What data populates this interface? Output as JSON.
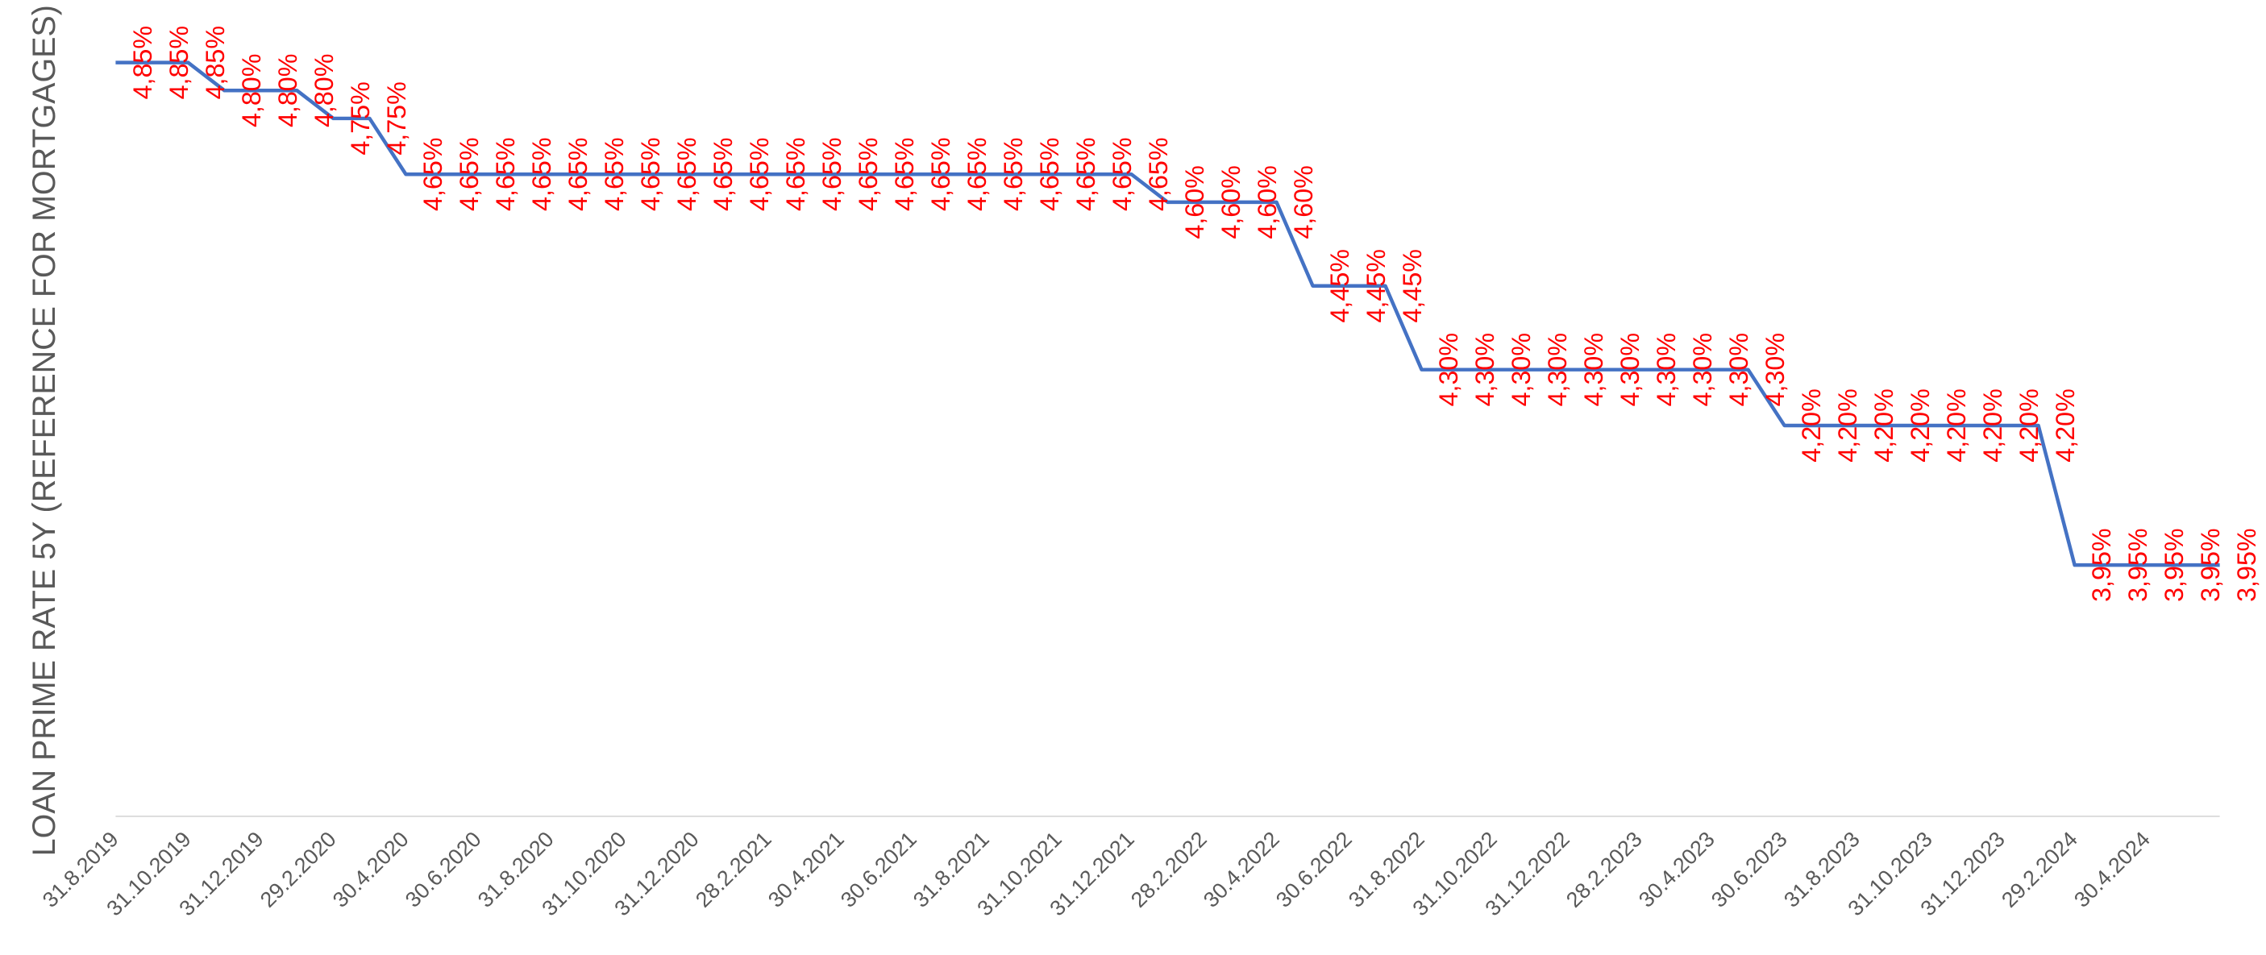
{
  "chart_data": {
    "type": "line",
    "y_label": "LOAN PRIME RATE 5Y (REFERENCE FOR MORTGAGES)",
    "categories": [
      "31.8.2019",
      null,
      "31.10.2019",
      null,
      "31.12.2019",
      null,
      "29.2.2020",
      null,
      "30.4.2020",
      null,
      "30.6.2020",
      null,
      "31.8.2020",
      null,
      "31.10.2020",
      null,
      "31.12.2020",
      null,
      "28.2.2021",
      null,
      "30.4.2021",
      null,
      "30.6.2021",
      null,
      "31.8.2021",
      null,
      "31.10.2021",
      null,
      "31.12.2021",
      null,
      "28.2.2022",
      null,
      "30.4.2022",
      null,
      "30.6.2022",
      null,
      "31.8.2022",
      null,
      "31.10.2022",
      null,
      "31.12.2022",
      null,
      "28.2.2023",
      null,
      "30.4.2023",
      null,
      "30.6.2023",
      null,
      "31.8.2023",
      null,
      "31.10.2023",
      null,
      "31.12.2023",
      null,
      "29.2.2024",
      null,
      "30.4.2024",
      null,
      null
    ],
    "values": [
      4.85,
      4.85,
      4.85,
      4.8,
      4.8,
      4.8,
      4.75,
      4.75,
      4.65,
      4.65,
      4.65,
      4.65,
      4.65,
      4.65,
      4.65,
      4.65,
      4.65,
      4.65,
      4.65,
      4.65,
      4.65,
      4.65,
      4.65,
      4.65,
      4.65,
      4.65,
      4.65,
      4.65,
      4.65,
      4.6,
      4.6,
      4.6,
      4.6,
      4.45,
      4.45,
      4.45,
      4.3,
      4.3,
      4.3,
      4.3,
      4.3,
      4.3,
      4.3,
      4.3,
      4.3,
      4.3,
      4.2,
      4.2,
      4.2,
      4.2,
      4.2,
      4.2,
      4.2,
      4.2,
      3.95,
      3.95,
      3.95,
      3.95,
      3.95
    ],
    "value_labels": [
      "4,85%",
      "4,85%",
      "4,85%",
      "4,80%",
      "4,80%",
      "4,80%",
      "4,75%",
      "4,75%",
      "4,65%",
      "4,65%",
      "4,65%",
      "4,65%",
      "4,65%",
      "4,65%",
      "4,65%",
      "4,65%",
      "4,65%",
      "4,65%",
      "4,65%",
      "4,65%",
      "4,65%",
      "4,65%",
      "4,65%",
      "4,65%",
      "4,65%",
      "4,65%",
      "4,65%",
      "4,65%",
      "4,65%",
      "4,60%",
      "4,60%",
      "4,60%",
      "4,60%",
      "4,45%",
      "4,45%",
      "4,45%",
      "4,30%",
      "4,30%",
      "4,30%",
      "4,30%",
      "4,30%",
      "4,30%",
      "4,30%",
      "4,30%",
      "4,30%",
      "4,30%",
      "4,20%",
      "4,20%",
      "4,20%",
      "4,20%",
      "4,20%",
      "4,20%",
      "4,20%",
      "4,20%",
      "3,95%",
      "3,95%",
      "3,95%",
      "3,95%",
      "3,95%"
    ],
    "color": "#4472c4",
    "label_color": "#ff0000",
    "ylim": [
      3.5,
      4.9
    ],
    "grid": false
  }
}
